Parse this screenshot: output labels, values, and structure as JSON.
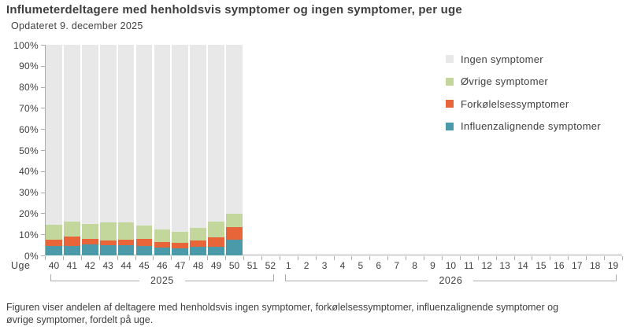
{
  "header": {
    "title": "Influmeterdeltagere med henholdsvis symptomer og ingen symptomer, per uge",
    "subtitle": "Opdateret 9. december 2025"
  },
  "colors": {
    "ingen": "#e8e8e8",
    "ovrige": "#c3d69b",
    "forkolelses": "#e8653a",
    "influenza": "#4b9aaa",
    "axis": "#ababab",
    "text": "#3f3f3f"
  },
  "legend": [
    {
      "label": "Ingen symptomer",
      "color": "#e8e8e8",
      "icon": "legend-swatch-ingen-icon"
    },
    {
      "label": "Øvrige symptomer",
      "color": "#c3d69b",
      "icon": "legend-swatch-ovrige-icon"
    },
    {
      "label": "Forkølelsessymptomer",
      "color": "#e8653a",
      "icon": "legend-swatch-forkolelses-icon"
    },
    {
      "label": "Influenzalignende symptomer",
      "color": "#4b9aaa",
      "icon": "legend-swatch-influenza-icon"
    }
  ],
  "chart_data": {
    "type": "bar",
    "stacked": true,
    "percent_stacked": true,
    "title": "Influmeterdeltagere med henholdsvis symptomer og ingen symptomer, per uge",
    "x_axis_label": "Uge",
    "ylabel": "",
    "ylim": [
      0,
      100
    ],
    "ytick_step": 10,
    "ytick_suffix": "%",
    "grid": false,
    "legend_position": "right",
    "categories": [
      "40",
      "41",
      "42",
      "43",
      "44",
      "45",
      "46",
      "47",
      "48",
      "49",
      "50",
      "51",
      "52",
      "1",
      "2",
      "3",
      "4",
      "5",
      "6",
      "7",
      "8",
      "9",
      "10",
      "11",
      "12",
      "13",
      "14",
      "15",
      "16",
      "17",
      "18",
      "19"
    ],
    "year_groups": [
      {
        "label": "2025",
        "from": 0,
        "count": 13
      },
      {
        "label": "2026",
        "from": 13,
        "count": 19
      }
    ],
    "series": [
      {
        "name": "Influenzalignende symptomer",
        "color": "#4b9aaa",
        "values": [
          4.5,
          4.5,
          5.3,
          4.9,
          4.8,
          4.5,
          3.8,
          3.5,
          4.0,
          4.2,
          7.5
        ]
      },
      {
        "name": "Forkølelsessymptomer",
        "color": "#e8653a",
        "values": [
          3.0,
          4.5,
          2.7,
          2.3,
          2.7,
          3.3,
          2.7,
          2.3,
          3.2,
          4.5,
          5.8
        ]
      },
      {
        "name": "Øvrige symptomer",
        "color": "#c3d69b",
        "values": [
          7.0,
          7.0,
          7.0,
          8.3,
          8.0,
          6.2,
          6.0,
          5.4,
          5.8,
          7.3,
          6.5
        ]
      },
      {
        "name": "Ingen symptomer",
        "color": "#e8e8e8",
        "values": [
          85.5,
          84.0,
          85.0,
          84.5,
          84.5,
          86.0,
          87.5,
          88.8,
          87.0,
          84.0,
          80.2
        ]
      }
    ]
  },
  "footer": {
    "caption": "Figuren viser andelen af deltagere med henholdsvis ingen symptomer, forkølelsessymptomer, influenzalignende symptomer og øvrige symptomer, fordelt på uge."
  }
}
